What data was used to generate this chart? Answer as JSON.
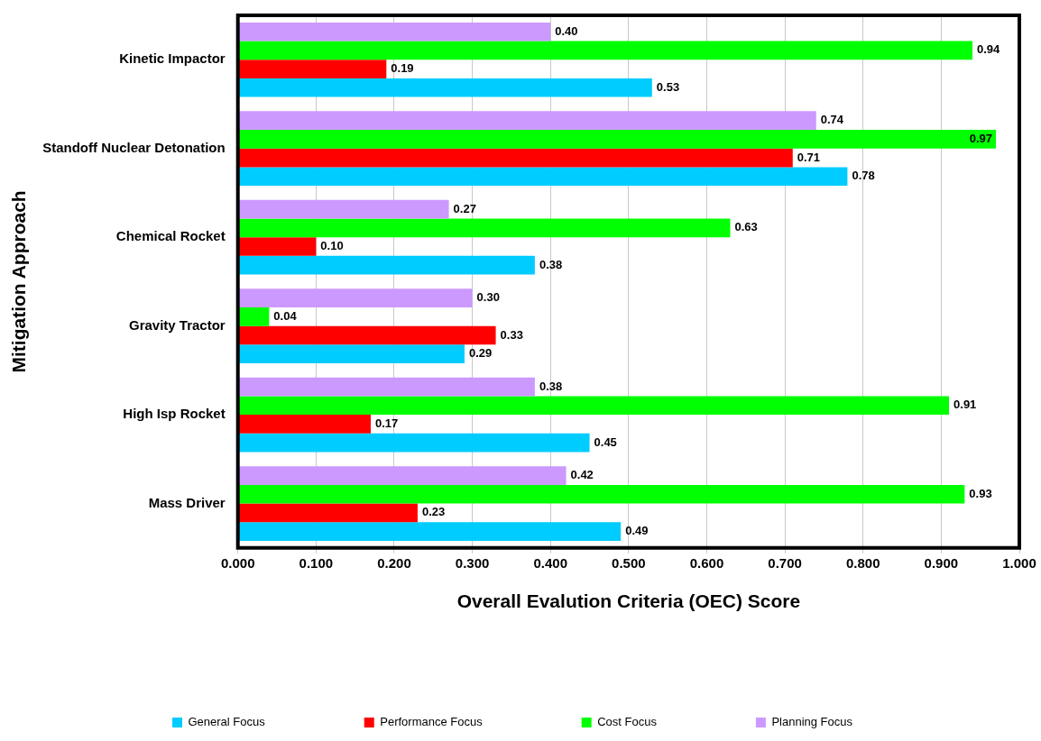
{
  "chart_data": {
    "type": "bar",
    "orientation": "horizontal",
    "xlabel": "Overall Evalution Criteria (OEC) Score",
    "ylabel": "Mitigation Approach",
    "categories": [
      "Kinetic Impactor",
      "Standoff Nuclear Detonation",
      "Chemical Rocket",
      "Gravity Tractor",
      "High Isp Rocket",
      "Mass Driver"
    ],
    "series": [
      {
        "name": "General Focus",
        "color": "#00ccff",
        "values": [
          0.53,
          0.78,
          0.38,
          0.29,
          0.45,
          0.49
        ],
        "value_labels": [
          "0.53",
          "0.78",
          "0.38",
          "0.29",
          "0.45",
          "0.49"
        ]
      },
      {
        "name": "Performance Focus",
        "color": "#ff0000",
        "values": [
          0.19,
          0.71,
          0.1,
          0.33,
          0.17,
          0.23
        ],
        "value_labels": [
          "0.19",
          "0.71",
          "0.10",
          "0.33",
          "0.17",
          "0.23"
        ]
      },
      {
        "name": "Cost Focus",
        "color": "#00ff00",
        "values": [
          0.94,
          0.97,
          0.63,
          0.04,
          0.91,
          0.93
        ],
        "value_labels": [
          "0.94",
          "0.97",
          "0.63",
          "0.04",
          "0.91",
          "0.93"
        ]
      },
      {
        "name": "Planning Focus",
        "color": "#cc99ff",
        "values": [
          0.4,
          0.74,
          0.27,
          0.3,
          0.38,
          0.42
        ],
        "value_labels": [
          "0.40",
          "0.74",
          "0.27",
          "0.30",
          "0.38",
          "0.42"
        ]
      }
    ],
    "xlim": [
      0,
      1
    ],
    "xticks": [
      {
        "value": 0,
        "label": "0.000"
      },
      {
        "value": 0.1,
        "label": "0.100"
      },
      {
        "value": 0.2,
        "label": "0.200"
      },
      {
        "value": 0.3,
        "label": "0.300"
      },
      {
        "value": 0.4,
        "label": "0.400"
      },
      {
        "value": 0.5,
        "label": "0.500"
      },
      {
        "value": 0.6,
        "label": "0.600"
      },
      {
        "value": 0.7,
        "label": "0.700"
      },
      {
        "value": 0.8,
        "label": "0.800"
      },
      {
        "value": 0.9,
        "label": "0.900"
      },
      {
        "value": 1,
        "label": "1.000"
      }
    ],
    "grid": "x",
    "legend": "bottom"
  }
}
